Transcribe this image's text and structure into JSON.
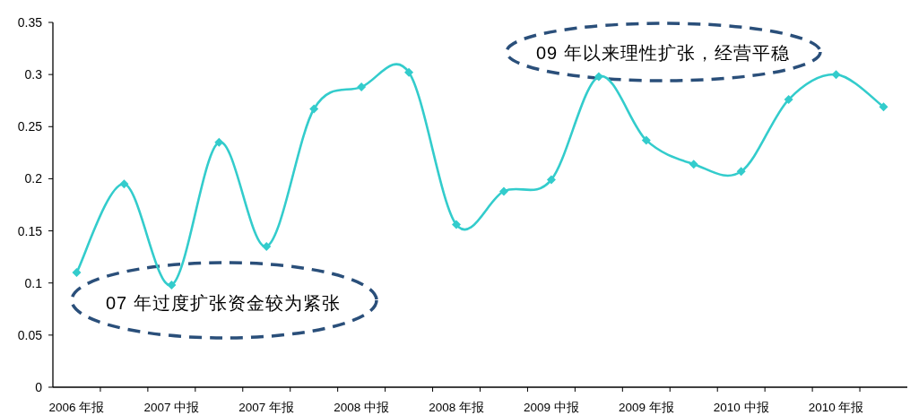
{
  "chart_data": {
    "type": "line",
    "categories": [
      "2006 年报",
      null,
      "2007 中报",
      null,
      "2007 年报",
      null,
      "2008 中报",
      null,
      "2008 年报",
      null,
      "2009 中报",
      null,
      "2009 年报",
      null,
      "2010 中报",
      null,
      "2010 年报",
      null
    ],
    "series": [
      {
        "color": "#33cccc",
        "values": [
          0.11,
          0.195,
          0.098,
          0.235,
          0.135,
          0.267,
          0.288,
          0.302,
          0.156,
          0.188,
          0.199,
          0.298,
          0.237,
          0.214,
          0.207,
          0.276,
          0.3,
          0.269
        ]
      }
    ],
    "ylim": [
      0,
      0.35
    ],
    "yticks": [
      0,
      0.05,
      0.1,
      0.15,
      0.2,
      0.25,
      0.3,
      0.35
    ],
    "marker": "diamond",
    "line_style": "solid",
    "grid": false,
    "annotations": [
      "07 年过度扩张资金较为紧张",
      "09 年以来理性扩张，经营平稳"
    ]
  }
}
